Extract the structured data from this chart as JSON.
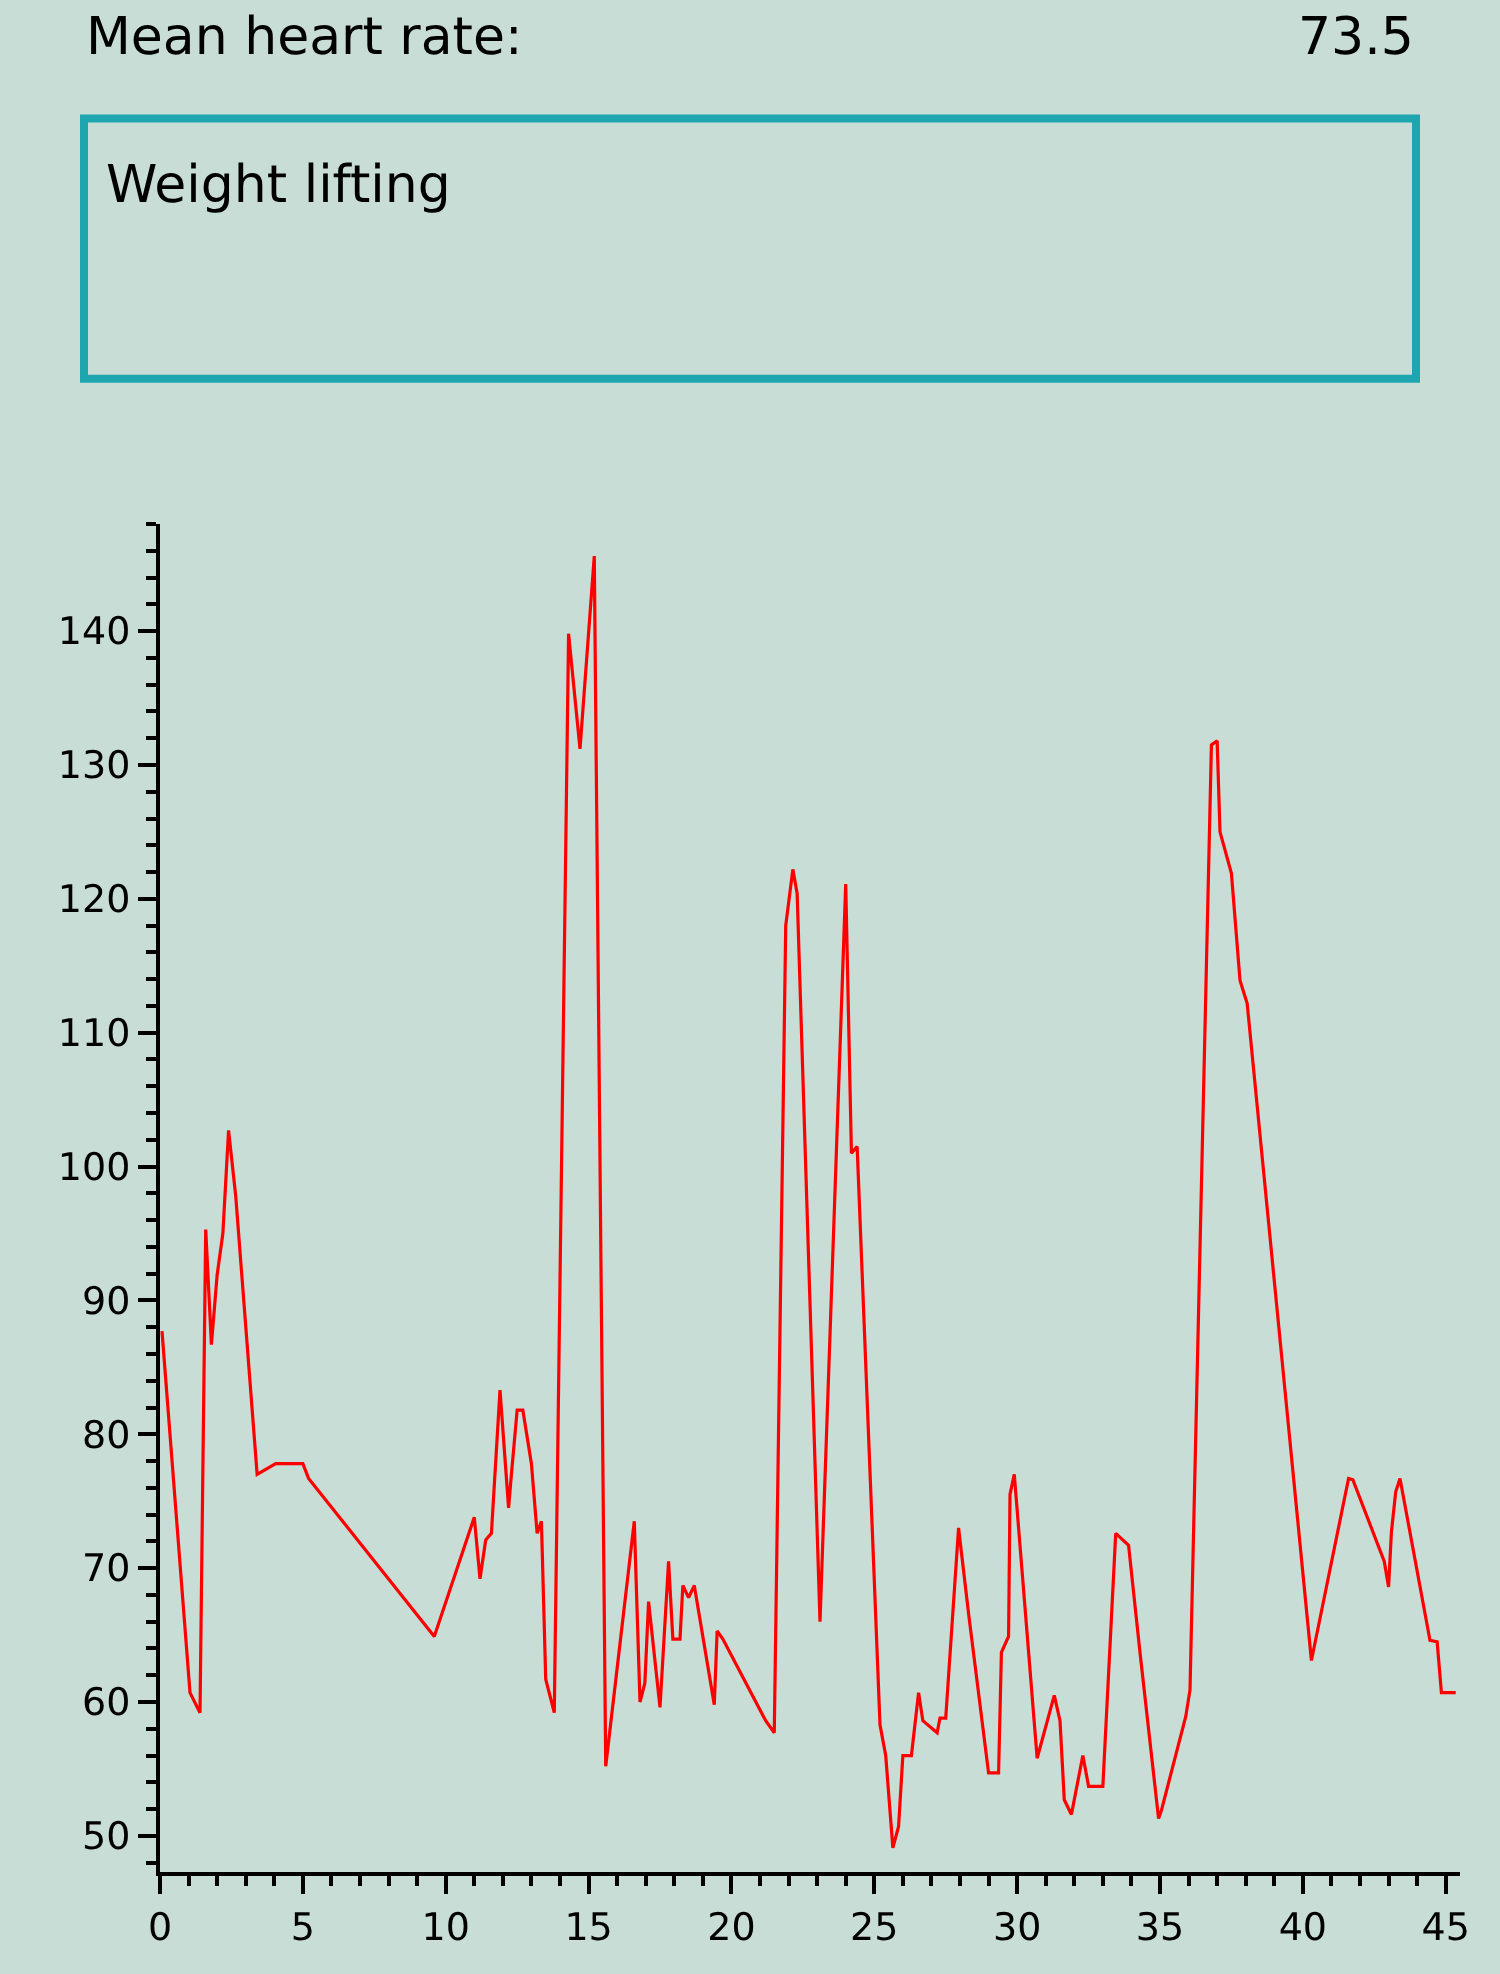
{
  "chart_data": {
    "type": "line",
    "annotations": [
      "Mean heart rate:",
      "73.5",
      "Weight lifting"
    ],
    "x": [
      0.07,
      1.05,
      1.4,
      1.6,
      1.8,
      2.0,
      2.2,
      2.4,
      2.65,
      3.4,
      4.05,
      5.0,
      5.2,
      9.6,
      11.0,
      11.2,
      11.4,
      11.6,
      11.9,
      12.2,
      12.3,
      12.5,
      12.7,
      13.0,
      13.2,
      13.35,
      13.5,
      13.8,
      14.3,
      14.7,
      15.2,
      15.6,
      16.6,
      16.8,
      16.97,
      17.1,
      17.5,
      17.8,
      17.95,
      18.2,
      18.3,
      18.5,
      18.7,
      19.4,
      19.5,
      19.7,
      21.2,
      21.5,
      21.9,
      22.15,
      22.3,
      23.1,
      24.0,
      24.2,
      24.4,
      25.2,
      25.4,
      25.65,
      25.85,
      26.0,
      26.3,
      26.55,
      26.7,
      27.2,
      27.3,
      27.5,
      27.95,
      28.3,
      29.0,
      29.35,
      29.45,
      29.7,
      29.75,
      29.9,
      30.7,
      31.3,
      31.5,
      31.65,
      31.9,
      32.3,
      32.5,
      33.0,
      33.45,
      33.9,
      34.1,
      34.3,
      34.95,
      35.05,
      35.9,
      36.05,
      36.8,
      37.0,
      37.1,
      37.5,
      37.8,
      38.05,
      40.3,
      41.6,
      41.75,
      42.85,
      43.0,
      43.1,
      43.25,
      43.4,
      44.45,
      44.7,
      44.85,
      45.35
    ],
    "series": [
      {
        "color": "#ff0000",
        "values": [
          87.7,
          60.7,
          59.2,
          95.3,
          86.7,
          91.9,
          95,
          102.7,
          97.8,
          77,
          77.8,
          77.8,
          76.7,
          64.9,
          73.8,
          69.2,
          72.1,
          72.6,
          83.3,
          74.5,
          77,
          81.8,
          81.8,
          77.8,
          72.6,
          73.5,
          61.7,
          59.2,
          139.8,
          131.2,
          145.6,
          55.2,
          73.5,
          60,
          61.4,
          67.5,
          59.6,
          70.5,
          64.7,
          64.7,
          68.7,
          67.8,
          68.7,
          59.8,
          65.3,
          64.7,
          58.6,
          57.7,
          118,
          122.2,
          120.4,
          66,
          121.1,
          101,
          101.5,
          58.3,
          56,
          49.1,
          50.7,
          56,
          56,
          60.7,
          58.6,
          57.7,
          58.8,
          58.8,
          73,
          66.6,
          54.7,
          54.7,
          63.7,
          64.9,
          75.5,
          77,
          55.8,
          60.5,
          58.6,
          52.7,
          51.6,
          56,
          53.7,
          53.7,
          72.6,
          71.7,
          67.7,
          63.7,
          51.3,
          51.9,
          58.9,
          60.9,
          131.5,
          131.8,
          125,
          121.9,
          113.9,
          112.2,
          63.1,
          76.7,
          76.6,
          70.5,
          68.6,
          72.7,
          75.7,
          76.7,
          64.6,
          64.5,
          60.7,
          60.7
        ]
      }
    ],
    "xlim": [
      0,
      45.5
    ],
    "ylim": [
      47.3,
      148
    ],
    "xticks": [
      0,
      5,
      10,
      15,
      20,
      25,
      30,
      35,
      40,
      45
    ],
    "yticks": [
      50,
      60,
      70,
      80,
      90,
      100,
      110,
      120,
      130,
      140
    ],
    "grid": false,
    "marker": "none",
    "line_style": "solid"
  }
}
